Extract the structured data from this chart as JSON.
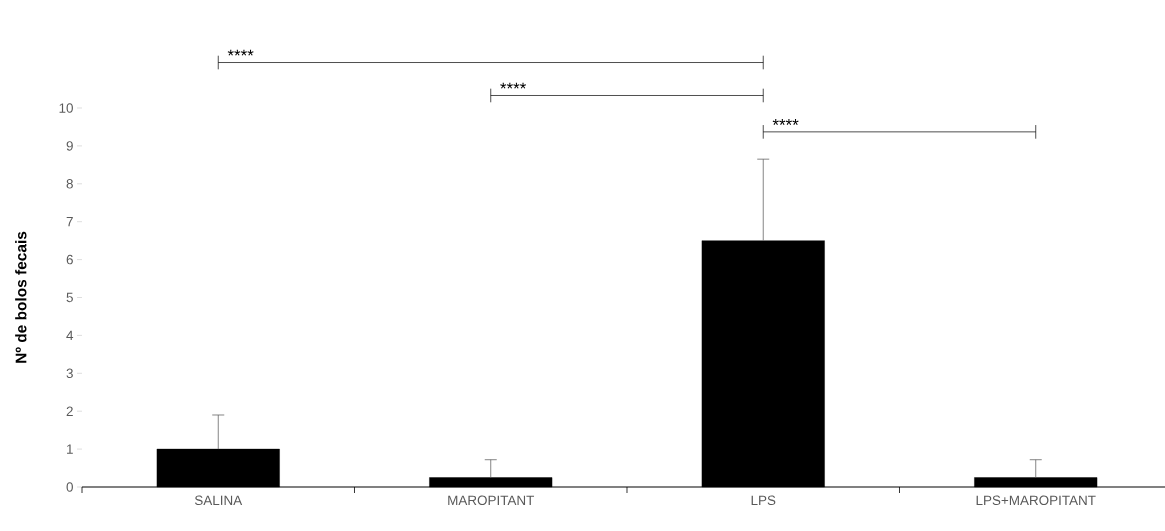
{
  "chart_data": {
    "type": "bar",
    "ylabel": "Nº de bolos fecais",
    "categories": [
      "SALINA",
      "MAROPITANT",
      "LPS",
      "LPS+MAROPITANT"
    ],
    "values": [
      1,
      0.25,
      6.5,
      0.25
    ],
    "color": "#000000",
    "errors": [
      [
        1,
        1.9
      ],
      [
        0.25,
        0.72
      ],
      [
        6.5,
        8.65
      ],
      [
        0.25,
        0.72
      ]
    ],
    "ylim": [
      0,
      10
    ],
    "yticks": [
      0,
      1,
      2,
      3,
      4,
      5,
      6,
      7,
      8,
      9,
      10
    ],
    "annotations": [
      "****",
      "****",
      "****"
    ]
  }
}
